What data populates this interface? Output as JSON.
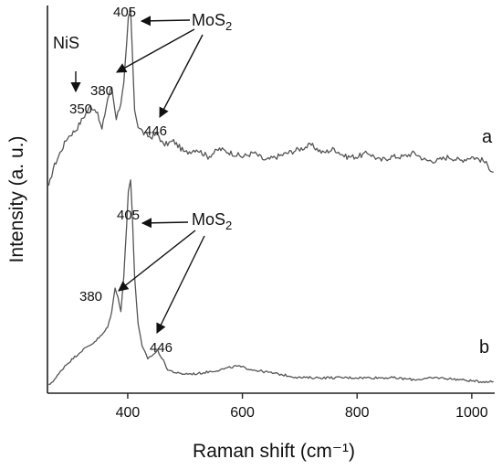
{
  "chart_data": {
    "type": "line",
    "xlabel": "Raman shift (cm⁻¹)",
    "ylabel": "Intensity (a. u.)",
    "xlim": [
      260,
      1040
    ],
    "x_ticks": [
      400,
      600,
      800,
      1000
    ],
    "y_ticks_shown": false,
    "grid": false,
    "legend": "none",
    "series": [
      {
        "label": "a",
        "baseline_y": 0.56,
        "points": [
          [
            262,
            0.53
          ],
          [
            270,
            0.58
          ],
          [
            282,
            0.62
          ],
          [
            295,
            0.66
          ],
          [
            310,
            0.68
          ],
          [
            322,
            0.71
          ],
          [
            335,
            0.74
          ],
          [
            345,
            0.73
          ],
          [
            355,
            0.68
          ],
          [
            365,
            0.76
          ],
          [
            372,
            0.79
          ],
          [
            380,
            0.71
          ],
          [
            388,
            0.75
          ],
          [
            393,
            0.8
          ],
          [
            398,
            0.9
          ],
          [
            401,
            0.97
          ],
          [
            405,
            0.99
          ],
          [
            408,
            0.88
          ],
          [
            412,
            0.73
          ],
          [
            418,
            0.69
          ],
          [
            428,
            0.67
          ],
          [
            440,
            0.66
          ],
          [
            452,
            0.67
          ],
          [
            462,
            0.64
          ],
          [
            480,
            0.65
          ],
          [
            500,
            0.62
          ],
          [
            520,
            0.63
          ],
          [
            540,
            0.61
          ],
          [
            560,
            0.63
          ],
          [
            580,
            0.62
          ],
          [
            600,
            0.61
          ],
          [
            620,
            0.62
          ],
          [
            640,
            0.6
          ],
          [
            660,
            0.61
          ],
          [
            680,
            0.62
          ],
          [
            700,
            0.63
          ],
          [
            720,
            0.64
          ],
          [
            740,
            0.62
          ],
          [
            760,
            0.63
          ],
          [
            780,
            0.61
          ],
          [
            800,
            0.61
          ],
          [
            820,
            0.62
          ],
          [
            840,
            0.6
          ],
          [
            860,
            0.61
          ],
          [
            880,
            0.61
          ],
          [
            900,
            0.62
          ],
          [
            920,
            0.6
          ],
          [
            940,
            0.6
          ],
          [
            960,
            0.61
          ],
          [
            980,
            0.6
          ],
          [
            1000,
            0.61
          ],
          [
            1020,
            0.6
          ],
          [
            1038,
            0.57
          ]
        ]
      },
      {
        "label": "b",
        "baseline_y": 0.02,
        "points": [
          [
            262,
            0.02
          ],
          [
            275,
            0.04
          ],
          [
            290,
            0.07
          ],
          [
            305,
            0.09
          ],
          [
            320,
            0.11
          ],
          [
            340,
            0.13
          ],
          [
            355,
            0.15
          ],
          [
            365,
            0.17
          ],
          [
            372,
            0.21
          ],
          [
            378,
            0.27
          ],
          [
            383,
            0.25
          ],
          [
            388,
            0.21
          ],
          [
            393,
            0.3
          ],
          [
            398,
            0.43
          ],
          [
            401,
            0.52
          ],
          [
            405,
            0.55
          ],
          [
            408,
            0.46
          ],
          [
            412,
            0.3
          ],
          [
            418,
            0.18
          ],
          [
            425,
            0.12
          ],
          [
            435,
            0.09
          ],
          [
            445,
            0.1
          ],
          [
            452,
            0.11
          ],
          [
            460,
            0.09
          ],
          [
            470,
            0.06
          ],
          [
            490,
            0.05
          ],
          [
            520,
            0.05
          ],
          [
            560,
            0.06
          ],
          [
            590,
            0.07
          ],
          [
            620,
            0.06
          ],
          [
            660,
            0.05
          ],
          [
            700,
            0.04
          ],
          [
            740,
            0.04
          ],
          [
            780,
            0.04
          ],
          [
            820,
            0.04
          ],
          [
            860,
            0.04
          ],
          [
            900,
            0.035
          ],
          [
            940,
            0.04
          ],
          [
            980,
            0.035
          ],
          [
            1010,
            0.03
          ],
          [
            1038,
            0.03
          ]
        ]
      }
    ],
    "annotations": {
      "trace_a": {
        "peaks": [
          "350",
          "380",
          "405",
          "446"
        ],
        "compounds": {
          "nis": "NiS",
          "mos2_base": "MoS",
          "mos2_sub": "2"
        }
      },
      "trace_b": {
        "peaks": [
          "380",
          "405",
          "446"
        ],
        "compounds": {
          "mos2_base": "MoS",
          "mos2_sub": "2"
        }
      }
    }
  }
}
